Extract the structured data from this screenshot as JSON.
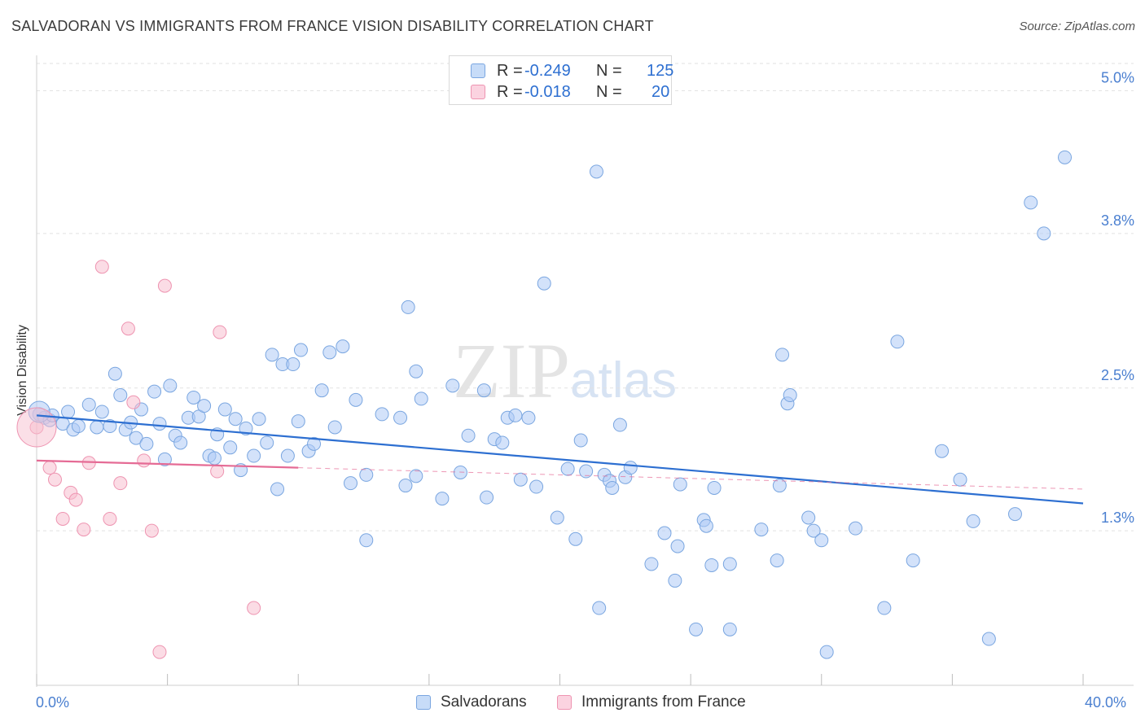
{
  "title": "SALVADORAN VS IMMIGRANTS FROM FRANCE VISION DISABILITY CORRELATION CHART",
  "source": "Source: ZipAtlas.com",
  "watermark": {
    "left": "ZIP",
    "right": "atlas"
  },
  "legend": {
    "rows": [
      {
        "r_label": "R =",
        "r_value": "-0.249",
        "n_label": "N =",
        "n_value": "125",
        "color": "#aecbf5"
      },
      {
        "r_label": "R =",
        "r_value": "-0.018",
        "n_label": "N =",
        "n_value": "20",
        "color": "#f7bfd0"
      }
    ]
  },
  "bottom_legend": [
    {
      "label": "Salvadorans",
      "color": "#aecbf5"
    },
    {
      "label": "Immigrants from France",
      "color": "#f7bfd0"
    }
  ],
  "chart_data": {
    "type": "scatter",
    "title": "SALVADORAN VS IMMIGRANTS FROM FRANCE VISION DISABILITY CORRELATION CHART",
    "xlabel": "",
    "ylabel": "Vision Disability",
    "xlim": [
      0,
      40
    ],
    "ylim": [
      0,
      5.25
    ],
    "x_tick_labels": [
      "0.0%",
      "40.0%"
    ],
    "y_ticks": [
      1.3,
      2.5,
      3.8,
      5.0
    ],
    "y_tick_labels": [
      "1.3%",
      "2.5%",
      "3.8%",
      "5.0%"
    ],
    "grid": true,
    "legend_position": "top-center",
    "series": [
      {
        "name": "Salvadorans",
        "color": "#aecbf5",
        "stroke": "#7aa6e0",
        "trend": {
          "x": [
            0,
            40
          ],
          "y": [
            2.27,
            1.53
          ],
          "color": "#2d6fd1",
          "style": "solid"
        },
        "points": [
          [
            0.1,
            2.28
          ],
          [
            0.3,
            2.25
          ],
          [
            0.5,
            2.23
          ],
          [
            0.6,
            2.27
          ],
          [
            1.0,
            2.2
          ],
          [
            1.2,
            2.3
          ],
          [
            1.4,
            2.15
          ],
          [
            1.6,
            2.18
          ],
          [
            2.0,
            2.36
          ],
          [
            2.3,
            2.17
          ],
          [
            2.5,
            2.3
          ],
          [
            2.8,
            2.18
          ],
          [
            3.0,
            2.62
          ],
          [
            3.2,
            2.44
          ],
          [
            3.4,
            2.15
          ],
          [
            3.6,
            2.21
          ],
          [
            3.8,
            2.08
          ],
          [
            4.0,
            2.32
          ],
          [
            4.2,
            2.03
          ],
          [
            4.5,
            2.47
          ],
          [
            4.7,
            2.2
          ],
          [
            4.9,
            1.9
          ],
          [
            5.1,
            2.52
          ],
          [
            5.3,
            2.1
          ],
          [
            5.5,
            2.04
          ],
          [
            5.8,
            2.25
          ],
          [
            6.0,
            2.42
          ],
          [
            6.2,
            2.26
          ],
          [
            6.4,
            2.35
          ],
          [
            6.6,
            1.93
          ],
          [
            6.8,
            1.91
          ],
          [
            6.9,
            2.11
          ],
          [
            7.2,
            2.32
          ],
          [
            7.4,
            2.0
          ],
          [
            7.6,
            2.24
          ],
          [
            7.8,
            1.81
          ],
          [
            8.0,
            2.16
          ],
          [
            8.3,
            1.93
          ],
          [
            8.5,
            2.24
          ],
          [
            8.8,
            2.04
          ],
          [
            9.0,
            2.78
          ],
          [
            9.2,
            1.65
          ],
          [
            9.4,
            2.7
          ],
          [
            9.6,
            1.93
          ],
          [
            9.8,
            2.7
          ],
          [
            10.0,
            2.22
          ],
          [
            10.1,
            2.82
          ],
          [
            10.4,
            1.97
          ],
          [
            10.6,
            2.03
          ],
          [
            10.9,
            2.48
          ],
          [
            11.2,
            2.8
          ],
          [
            11.4,
            2.17
          ],
          [
            11.7,
            2.85
          ],
          [
            12.0,
            1.7
          ],
          [
            12.2,
            2.4
          ],
          [
            12.6,
            1.22
          ],
          [
            12.6,
            1.77
          ],
          [
            13.2,
            2.28
          ],
          [
            13.9,
            2.25
          ],
          [
            14.1,
            1.68
          ],
          [
            14.2,
            3.18
          ],
          [
            14.5,
            1.76
          ],
          [
            14.5,
            2.64
          ],
          [
            14.7,
            2.41
          ],
          [
            15.5,
            1.57
          ],
          [
            15.9,
            2.52
          ],
          [
            16.2,
            1.79
          ],
          [
            16.5,
            2.1
          ],
          [
            17.1,
            2.48
          ],
          [
            17.2,
            1.58
          ],
          [
            17.5,
            2.07
          ],
          [
            17.8,
            2.04
          ],
          [
            18.0,
            2.25
          ],
          [
            18.3,
            2.27
          ],
          [
            18.5,
            1.73
          ],
          [
            18.8,
            2.25
          ],
          [
            19.1,
            1.67
          ],
          [
            19.4,
            3.38
          ],
          [
            19.9,
            1.41
          ],
          [
            20.3,
            1.82
          ],
          [
            20.6,
            1.23
          ],
          [
            20.8,
            2.06
          ],
          [
            21.0,
            1.8
          ],
          [
            21.4,
            4.32
          ],
          [
            21.5,
            0.65
          ],
          [
            21.7,
            1.77
          ],
          [
            21.9,
            1.72
          ],
          [
            22.0,
            1.66
          ],
          [
            22.3,
            2.19
          ],
          [
            22.5,
            1.75
          ],
          [
            22.7,
            1.83
          ],
          [
            23.5,
            1.02
          ],
          [
            24.0,
            1.28
          ],
          [
            24.4,
            0.88
          ],
          [
            24.5,
            1.17
          ],
          [
            24.6,
            1.69
          ],
          [
            25.2,
            0.47
          ],
          [
            25.5,
            1.39
          ],
          [
            25.6,
            1.34
          ],
          [
            25.8,
            1.01
          ],
          [
            25.9,
            1.66
          ],
          [
            26.5,
            1.02
          ],
          [
            26.5,
            0.47
          ],
          [
            27.7,
            1.31
          ],
          [
            28.3,
            1.05
          ],
          [
            28.4,
            1.68
          ],
          [
            28.5,
            2.78
          ],
          [
            28.7,
            2.37
          ],
          [
            28.8,
            2.44
          ],
          [
            29.5,
            1.41
          ],
          [
            29.7,
            1.3
          ],
          [
            30.0,
            1.22
          ],
          [
            30.2,
            0.28
          ],
          [
            31.3,
            1.32
          ],
          [
            32.4,
            0.65
          ],
          [
            32.9,
            2.89
          ],
          [
            33.5,
            1.05
          ],
          [
            34.6,
            1.97
          ],
          [
            35.3,
            1.73
          ],
          [
            35.8,
            1.38
          ],
          [
            36.4,
            0.39
          ],
          [
            37.4,
            1.44
          ],
          [
            38.0,
            4.06
          ],
          [
            38.5,
            3.8
          ],
          [
            39.3,
            4.44
          ]
        ]
      },
      {
        "name": "Immigrants from France",
        "color": "#f7bfd0",
        "stroke": "#ee94b1",
        "trend": {
          "x": [
            0,
            10
          ],
          "y": [
            1.89,
            1.83
          ],
          "color": "#e56b95",
          "style": "solid",
          "extension": {
            "x": [
              10,
              40
            ],
            "y": [
              1.83,
              1.65
            ],
            "style": "dashed"
          }
        },
        "points": [
          [
            0.0,
            2.17
          ],
          [
            0.5,
            1.83
          ],
          [
            0.7,
            1.73
          ],
          [
            1.0,
            1.4
          ],
          [
            1.3,
            1.62
          ],
          [
            1.5,
            1.56
          ],
          [
            1.8,
            1.31
          ],
          [
            2.0,
            1.87
          ],
          [
            2.5,
            3.52
          ],
          [
            2.8,
            1.4
          ],
          [
            3.2,
            1.7
          ],
          [
            3.5,
            3.0
          ],
          [
            3.7,
            2.38
          ],
          [
            4.1,
            1.89
          ],
          [
            4.4,
            1.3
          ],
          [
            4.7,
            0.28
          ],
          [
            4.9,
            3.36
          ],
          [
            6.9,
            1.8
          ],
          [
            7.0,
            2.97
          ],
          [
            8.3,
            0.65
          ]
        ]
      }
    ]
  }
}
